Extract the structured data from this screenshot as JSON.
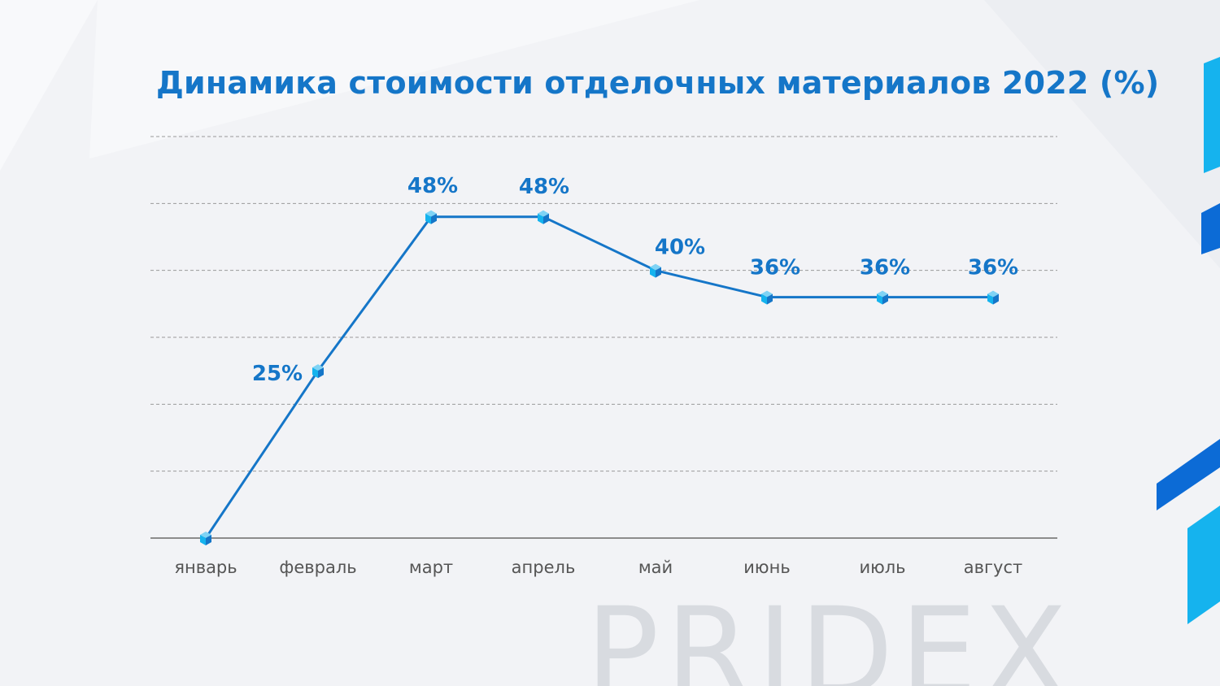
{
  "brand": {
    "watermark": "PRIDEX",
    "colors": {
      "primary": "#1576c8",
      "accent_light": "#15b3ee",
      "accent_dark": "#0c6bd6",
      "gridline": "#9a9a9a",
      "axis": "#8c8c8c",
      "tick_label": "#555555",
      "background": "#f2f3f6"
    }
  },
  "chart_data": {
    "type": "line",
    "title": "Динамика стоимости отделочных материалов 2022 (%)",
    "xlabel": "",
    "ylabel": "",
    "categories": [
      "январь",
      "февраль",
      "март",
      "апрель",
      "май",
      "июнь",
      "июль",
      "август"
    ],
    "series": [
      {
        "values": [
          0,
          25,
          48,
          48,
          40,
          36,
          36,
          36
        ],
        "data_labels": [
          "",
          "25%",
          "48%",
          "48%",
          "40%",
          "36%",
          "36%",
          "36%"
        ],
        "color": "#1576c8",
        "marker_color": "#15b3ee"
      }
    ],
    "ylim": [
      0,
      60
    ],
    "grid": true,
    "grid_style": "dashed",
    "legend": "none"
  }
}
